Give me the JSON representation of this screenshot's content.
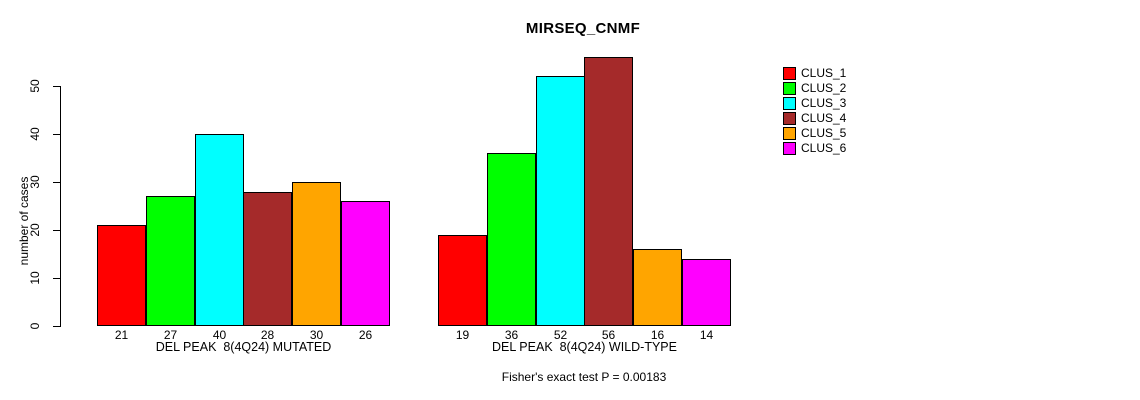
{
  "chart_data": {
    "type": "bar",
    "title": "MIRSEQ_CNMF",
    "ylabel": "number of cases",
    "xlabel": "",
    "ylim": [
      0,
      56
    ],
    "yticks": [
      0,
      10,
      20,
      30,
      40,
      50
    ],
    "grid": false,
    "legend_position": "right",
    "categories": [
      "DEL PEAK  8(4Q24) MUTATED",
      "DEL PEAK  8(4Q24) WILD-TYPE"
    ],
    "series": [
      {
        "name": "CLUS_1",
        "color": "#FF0000",
        "values": [
          21,
          19
        ]
      },
      {
        "name": "CLUS_2",
        "color": "#00FF00",
        "values": [
          27,
          36
        ]
      },
      {
        "name": "CLUS_3",
        "color": "#00FFFF",
        "values": [
          40,
          52
        ]
      },
      {
        "name": "CLUS_4",
        "color": "#A52A2A",
        "values": [
          28,
          56
        ]
      },
      {
        "name": "CLUS_5",
        "color": "#FFA500",
        "values": [
          30,
          16
        ]
      },
      {
        "name": "CLUS_6",
        "color": "#FF00FF",
        "values": [
          26,
          14
        ]
      }
    ],
    "bar_value_labels_shown": true,
    "annotation": "Fisher's exact test P = 0.00183",
    "axis_color": "#000000",
    "background_color": "#FFFFFF"
  }
}
